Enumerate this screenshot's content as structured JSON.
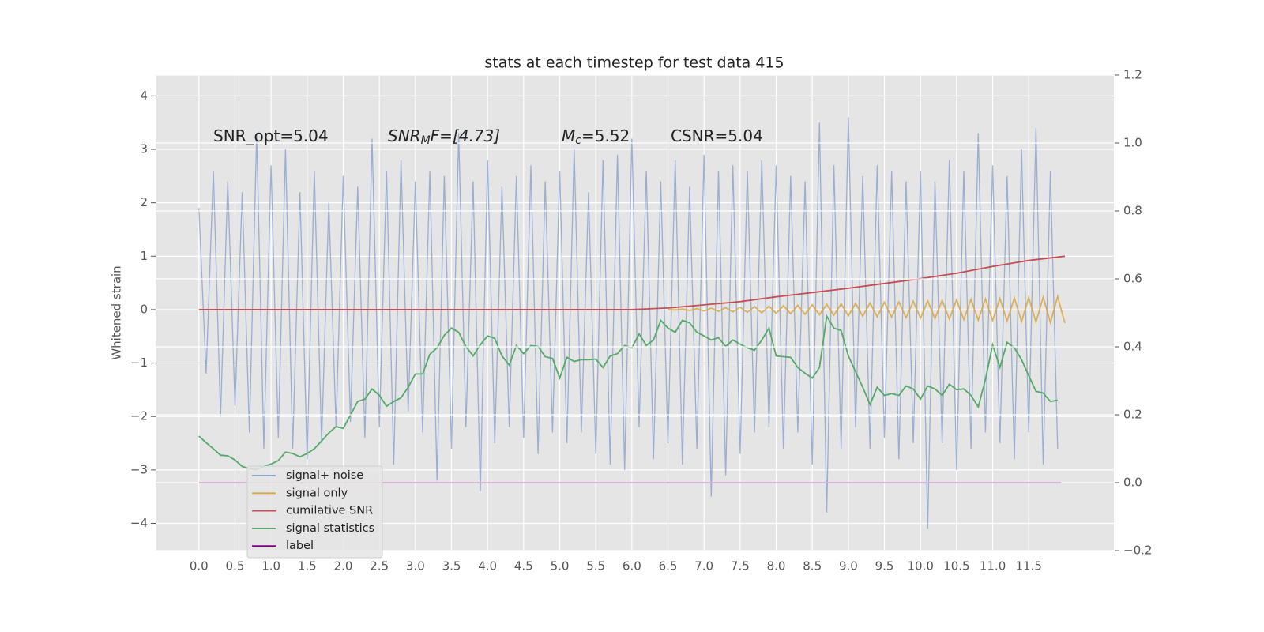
{
  "chart_data": {
    "type": "line",
    "title": "stats at each timestep for test data 415",
    "y_label": "Whitened strain",
    "annotations": [
      {
        "main": "SNR_opt=5.04"
      },
      {
        "main": "SNR",
        "sub": "M",
        "rest": "F=[4.73]"
      },
      {
        "main": "M",
        "sub": "c",
        "rest": "=5.52"
      },
      {
        "main": "CSNR=5.04"
      }
    ],
    "grid": true,
    "legend": "lower left",
    "xlim": [
      -0.6,
      12.68
    ],
    "ylim": [
      -4.51,
      4.39
    ],
    "y2lim": [
      -0.2,
      1.2
    ],
    "xticks": [
      {
        "value": 0,
        "label": "0.0"
      },
      0.5,
      {
        "value": 1,
        "label": "1.0"
      },
      1.5,
      {
        "value": 2,
        "label": "2.0"
      },
      2.5,
      {
        "value": 3,
        "label": "3.0"
      },
      3.5,
      {
        "value": 4,
        "label": "4.0"
      },
      4.5,
      {
        "value": 5,
        "label": "5.0"
      },
      5.5,
      {
        "value": 6,
        "label": "6.0"
      },
      6.5,
      {
        "value": 7,
        "label": "7.0"
      },
      7.5,
      {
        "value": 8,
        "label": "8.0"
      },
      8.5,
      {
        "value": 9,
        "label": "9.0"
      },
      9.5,
      {
        "value": 10,
        "label": "10.0"
      },
      10.5,
      {
        "value": 11,
        "label": "11.0"
      },
      11.5
    ],
    "yticks": [
      {
        "value": -4,
        "label": "−4"
      },
      {
        "value": -3,
        "label": "−3"
      },
      {
        "value": -2,
        "label": "−2"
      },
      {
        "value": -1,
        "label": "−1"
      },
      0,
      1,
      2,
      3,
      4
    ],
    "y2ticks": [
      {
        "value": -0.2,
        "label": "−0.2"
      },
      {
        "value": 0,
        "label": "0.0"
      },
      0.2,
      0.4,
      0.6,
      0.8,
      {
        "value": 1,
        "label": "1.0"
      },
      1.2
    ],
    "x": [
      0,
      0.1,
      0.2,
      0.3,
      0.4,
      0.5,
      0.6,
      0.7,
      0.8,
      0.9,
      1,
      1.1,
      1.2,
      1.3,
      1.4,
      1.5,
      1.6,
      1.7,
      1.8,
      1.9,
      2,
      2.1,
      2.2,
      2.3,
      2.4,
      2.5,
      2.6,
      2.7,
      2.8,
      2.9,
      3,
      3.1,
      3.2,
      3.3,
      3.4,
      3.5,
      3.6,
      3.7,
      3.8,
      3.9,
      4,
      4.1,
      4.2,
      4.3,
      4.4,
      4.5,
      4.6,
      4.7,
      4.8,
      4.9,
      5,
      5.1,
      5.2,
      5.3,
      5.4,
      5.5,
      5.6,
      5.7,
      5.8,
      5.9,
      6,
      6.1,
      6.2,
      6.3,
      6.4,
      6.5,
      6.6,
      6.7,
      6.8,
      6.9,
      7,
      7.1,
      7.2,
      7.3,
      7.4,
      7.5,
      7.6,
      7.7,
      7.8,
      7.9,
      8,
      8.1,
      8.2,
      8.3,
      8.4,
      8.5,
      8.6,
      8.7,
      8.8,
      8.9,
      9,
      9.1,
      9.2,
      9.3,
      9.4,
      9.5,
      9.6,
      9.7,
      9.8,
      9.9,
      10,
      10.1,
      10.2,
      10.3,
      10.4,
      10.5,
      10.6,
      10.7,
      10.8,
      10.9,
      11,
      11.1,
      11.2,
      11.3,
      11.4,
      11.5,
      11.6,
      11.7,
      11.8,
      11.9
    ],
    "series": [
      {
        "name": "signal+ noise",
        "color": "#7f9bc9",
        "values": [
          1.9,
          -1.2,
          2.6,
          -2.0,
          2.4,
          -1.8,
          2.2,
          -2.3,
          3.3,
          -2.6,
          2.7,
          -2.4,
          3.0,
          -2.6,
          2.2,
          -2.8,
          2.6,
          -2.5,
          2.0,
          -2.2,
          2.5,
          -2.1,
          2.3,
          -2.4,
          3.2,
          -2.2,
          2.6,
          -2.9,
          2.8,
          -1.9,
          2.4,
          -2.3,
          2.6,
          -3.2,
          2.5,
          -2.6,
          3.3,
          -2.2,
          2.4,
          -3.4,
          2.8,
          -2.5,
          2.3,
          -2.2,
          2.5,
          -2.4,
          2.7,
          -2.7,
          2.4,
          -2.3,
          2.6,
          -2.5,
          3.0,
          -2.3,
          2.2,
          -2.7,
          2.8,
          -2.9,
          2.9,
          -3.0,
          3.2,
          -2.2,
          2.6,
          -2.8,
          2.4,
          -2.5,
          2.8,
          -2.9,
          2.3,
          -2.6,
          2.9,
          -3.5,
          2.6,
          -3.1,
          2.7,
          -2.7,
          2.6,
          -2.3,
          2.8,
          -2.2,
          2.7,
          -2.6,
          2.5,
          -2.3,
          2.4,
          -2.9,
          3.5,
          -3.8,
          2.7,
          -2.6,
          3.6,
          -2.2,
          2.5,
          -2.6,
          2.7,
          -2.4,
          2.6,
          -2.8,
          2.4,
          -2.5,
          2.6,
          -4.1,
          2.4,
          -2.5,
          2.8,
          -3.0,
          2.6,
          -2.6,
          3.3,
          -2.3,
          2.7,
          -2.5,
          2.5,
          -2.8,
          3.0,
          -2.3,
          3.4,
          -2.9,
          2.6,
          -2.6
        ]
      },
      {
        "name": "signal only",
        "color": "#dca63f",
        "x": [
          6.5,
          6.6,
          6.7,
          6.8,
          6.9,
          7,
          7.1,
          7.2,
          7.3,
          7.4,
          7.5,
          7.6,
          7.7,
          7.8,
          7.9,
          8,
          8.1,
          8.2,
          8.3,
          8.4,
          8.5,
          8.6,
          8.7,
          8.8,
          8.9,
          9,
          9.1,
          9.2,
          9.3,
          9.4,
          9.5,
          9.6,
          9.7,
          9.8,
          9.9,
          10,
          10.1,
          10.2,
          10.3,
          10.4,
          10.5,
          10.6,
          10.7,
          10.8,
          10.9,
          11,
          11.1,
          11.2,
          11.3,
          11.4,
          11.5,
          11.6,
          11.7,
          11.8,
          11.9,
          12
        ],
        "values": [
          0,
          -0.005,
          0.009,
          -0.014,
          0.018,
          -0.023,
          0.027,
          -0.032,
          0.036,
          -0.041,
          0.045,
          -0.05,
          0.055,
          -0.059,
          0.064,
          -0.068,
          0.073,
          -0.077,
          0.082,
          -0.086,
          0.091,
          -0.095,
          0.1,
          -0.105,
          0.109,
          -0.114,
          0.118,
          -0.123,
          0.127,
          -0.132,
          0.136,
          -0.141,
          0.145,
          -0.15,
          0.155,
          -0.159,
          0.164,
          -0.168,
          0.173,
          -0.177,
          0.182,
          -0.186,
          0.191,
          -0.195,
          0.2,
          -0.205,
          0.209,
          -0.214,
          0.218,
          -0.223,
          0.227,
          -0.232,
          0.236,
          -0.241,
          0.245,
          -0.25
        ]
      },
      {
        "name": "cumilative SNR",
        "color": "#c44e52",
        "x": [
          0,
          6,
          6.5,
          7,
          7.5,
          8,
          8.5,
          9,
          9.5,
          10,
          10.5,
          11,
          11.5,
          12
        ],
        "values": [
          0,
          0,
          0.03,
          0.09,
          0.15,
          0.24,
          0.32,
          0.4,
          0.49,
          0.58,
          0.68,
          0.81,
          0.92,
          1.0
        ]
      },
      {
        "name": "signal statistics",
        "color": "#55a868",
        "axis": "y2",
        "values": [
          0.137,
          0.118,
          0.1,
          0.081,
          0.079,
          0.067,
          0.048,
          0.041,
          0.039,
          0.048,
          0.055,
          0.065,
          0.09,
          0.086,
          0.076,
          0.086,
          0.1,
          0.123,
          0.146,
          0.165,
          0.16,
          0.199,
          0.239,
          0.246,
          0.276,
          0.257,
          0.225,
          0.239,
          0.25,
          0.281,
          0.32,
          0.32,
          0.378,
          0.397,
          0.434,
          0.455,
          0.443,
          0.401,
          0.373,
          0.406,
          0.432,
          0.425,
          0.373,
          0.346,
          0.404,
          0.38,
          0.404,
          0.401,
          0.371,
          0.366,
          0.308,
          0.369,
          0.357,
          0.362,
          0.362,
          0.364,
          0.339,
          0.373,
          0.38,
          0.404,
          0.397,
          0.438,
          0.404,
          0.42,
          0.478,
          0.455,
          0.443,
          0.478,
          0.471,
          0.443,
          0.432,
          0.42,
          0.427,
          0.401,
          0.42,
          0.408,
          0.397,
          0.39,
          0.42,
          0.455,
          0.373,
          0.371,
          0.369,
          0.339,
          0.322,
          0.308,
          0.339,
          0.49,
          0.455,
          0.448,
          0.373,
          0.327,
          0.281,
          0.23,
          0.281,
          0.257,
          0.262,
          0.257,
          0.285,
          0.276,
          0.246,
          0.285,
          0.276,
          0.257,
          0.29,
          0.274,
          0.276,
          0.257,
          0.223,
          0.304,
          0.406,
          0.339,
          0.413,
          0.397,
          0.362,
          0.315,
          0.269,
          0.264,
          0.239,
          0.243
        ]
      },
      {
        "name": "label",
        "color": "#800080",
        "axis": "y2",
        "x": [
          0,
          11.95
        ],
        "values": [
          0,
          0
        ]
      }
    ]
  }
}
